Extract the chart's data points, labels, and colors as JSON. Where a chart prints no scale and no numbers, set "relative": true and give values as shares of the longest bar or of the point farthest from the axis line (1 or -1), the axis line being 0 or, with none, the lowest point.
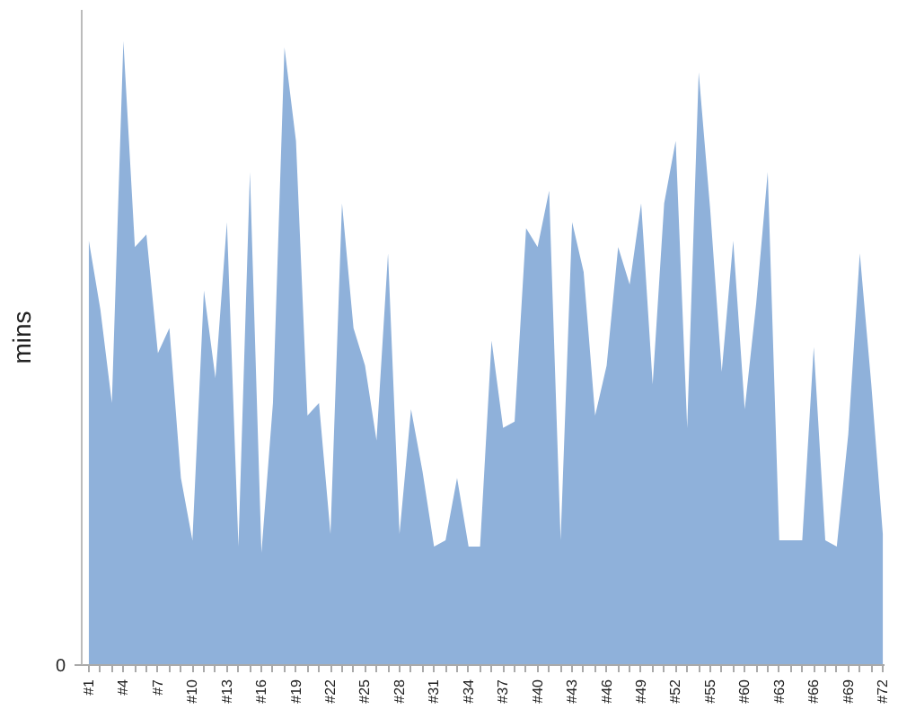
{
  "chart_data": {
    "type": "area",
    "ylabel": "mins",
    "relative": true,
    "annotations": [
      "0"
    ],
    "categories": [
      "#1",
      null,
      null,
      "#4",
      null,
      null,
      "#7",
      null,
      null,
      "#10",
      null,
      null,
      "#13",
      null,
      null,
      "#16",
      null,
      null,
      "#19",
      null,
      null,
      "#22",
      null,
      null,
      "#25",
      null,
      null,
      "#28",
      null,
      null,
      "#31",
      null,
      null,
      "#34",
      null,
      null,
      "#37",
      null,
      null,
      "#40",
      null,
      null,
      "#43",
      null,
      null,
      "#46",
      null,
      null,
      "#49",
      null,
      null,
      "#52",
      null,
      null,
      "#55",
      null,
      null,
      "#60",
      null,
      null,
      "#63",
      null,
      null,
      "#66",
      null,
      null,
      "#69",
      null,
      null,
      "#72"
    ],
    "series": [
      {
        "color": "#8fb1da",
        "values": [
          0.68,
          0.57,
          0.42,
          1,
          0.67,
          0.69,
          0.5,
          0.54,
          0.3,
          0.2,
          0.6,
          0.46,
          0.71,
          0.19,
          0.79,
          0.18,
          0.42,
          0.99,
          0.84,
          0.4,
          0.42,
          0.21,
          0.74,
          0.54,
          0.48,
          0.36,
          0.66,
          0.21,
          0.41,
          0.31,
          0.19,
          0.2,
          0.3,
          0.19,
          0.19,
          0.52,
          0.38,
          0.39,
          0.7,
          0.67,
          0.76,
          0.2,
          0.71,
          0.63,
          0.4,
          0.48,
          0.67,
          0.61,
          0.74,
          0.45,
          0.74,
          0.84,
          0.38,
          0.95,
          0.73,
          0.47,
          0.68,
          0.41,
          0.58,
          0.79,
          0.2,
          0.2,
          0.2,
          0.51,
          0.2,
          0.19,
          0.37,
          0.66,
          0.45,
          0.21
        ]
      }
    ]
  }
}
